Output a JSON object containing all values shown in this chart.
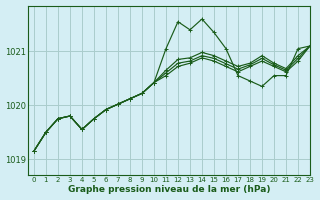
{
  "title": "Graphe pression niveau de la mer (hPa)",
  "bg_color": "#d4eef4",
  "grid_color": "#aacccc",
  "line_color": "#1a5c1a",
  "xlim": [
    -0.5,
    23
  ],
  "ylim": [
    1018.7,
    1021.85
  ],
  "yticks": [
    1019,
    1020,
    1021
  ],
  "xticks": [
    0,
    1,
    2,
    3,
    4,
    5,
    6,
    7,
    8,
    9,
    10,
    11,
    12,
    13,
    14,
    15,
    16,
    17,
    18,
    19,
    20,
    21,
    22,
    23
  ],
  "series": [
    [
      1019.15,
      1019.5,
      1019.75,
      1019.8,
      1019.55,
      1019.75,
      1019.92,
      1020.02,
      1020.12,
      1020.22,
      1020.42,
      1021.05,
      1021.55,
      1021.4,
      1021.6,
      1021.35,
      1021.05,
      1020.55,
      1020.45,
      1020.35,
      1020.55,
      1020.55,
      1021.05,
      1021.1
    ],
    [
      1019.15,
      1019.5,
      1019.75,
      1019.8,
      1019.55,
      1019.75,
      1019.92,
      1020.02,
      1020.12,
      1020.22,
      1020.42,
      1020.55,
      1020.72,
      1020.78,
      1020.88,
      1020.82,
      1020.72,
      1020.62,
      1020.72,
      1020.82,
      1020.72,
      1020.62,
      1020.82,
      1021.1
    ],
    [
      1019.15,
      1019.5,
      1019.75,
      1019.8,
      1019.55,
      1019.75,
      1019.92,
      1020.02,
      1020.12,
      1020.22,
      1020.42,
      1020.6,
      1020.78,
      1020.82,
      1020.92,
      1020.87,
      1020.77,
      1020.67,
      1020.75,
      1020.87,
      1020.75,
      1020.65,
      1020.87,
      1021.1
    ],
    [
      1019.15,
      1019.5,
      1019.75,
      1019.8,
      1019.55,
      1019.75,
      1019.92,
      1020.02,
      1020.12,
      1020.22,
      1020.42,
      1020.65,
      1020.85,
      1020.88,
      1020.98,
      1020.92,
      1020.82,
      1020.72,
      1020.78,
      1020.92,
      1020.78,
      1020.68,
      1020.92,
      1021.1
    ]
  ]
}
